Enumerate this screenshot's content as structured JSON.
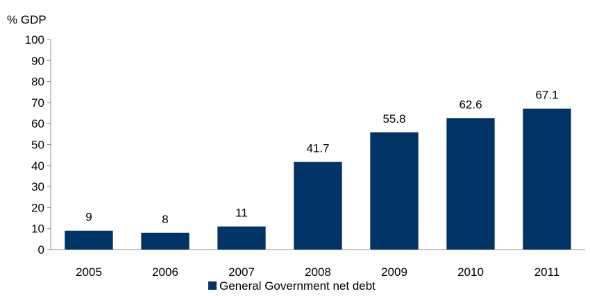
{
  "chart_data": {
    "type": "bar",
    "title": "",
    "ylabel": "% GDP",
    "xlabel": "",
    "categories": [
      "2005",
      "2006",
      "2007",
      "2008",
      "2009",
      "2010",
      "2011"
    ],
    "series": [
      {
        "name": "General Government net debt",
        "values": [
          9,
          8,
          11,
          41.7,
          55.8,
          62.6,
          67.1
        ],
        "value_labels": [
          "9",
          "8",
          "11",
          "41.7",
          "55.8",
          "62.6",
          "67.1"
        ],
        "color": "#003366"
      }
    ],
    "ylim": [
      0,
      100
    ],
    "yticks": [
      "0",
      "10",
      "20",
      "30",
      "40",
      "50",
      "60",
      "70",
      "80",
      "90",
      "100"
    ],
    "grid": false,
    "legend_position": "bottom"
  }
}
